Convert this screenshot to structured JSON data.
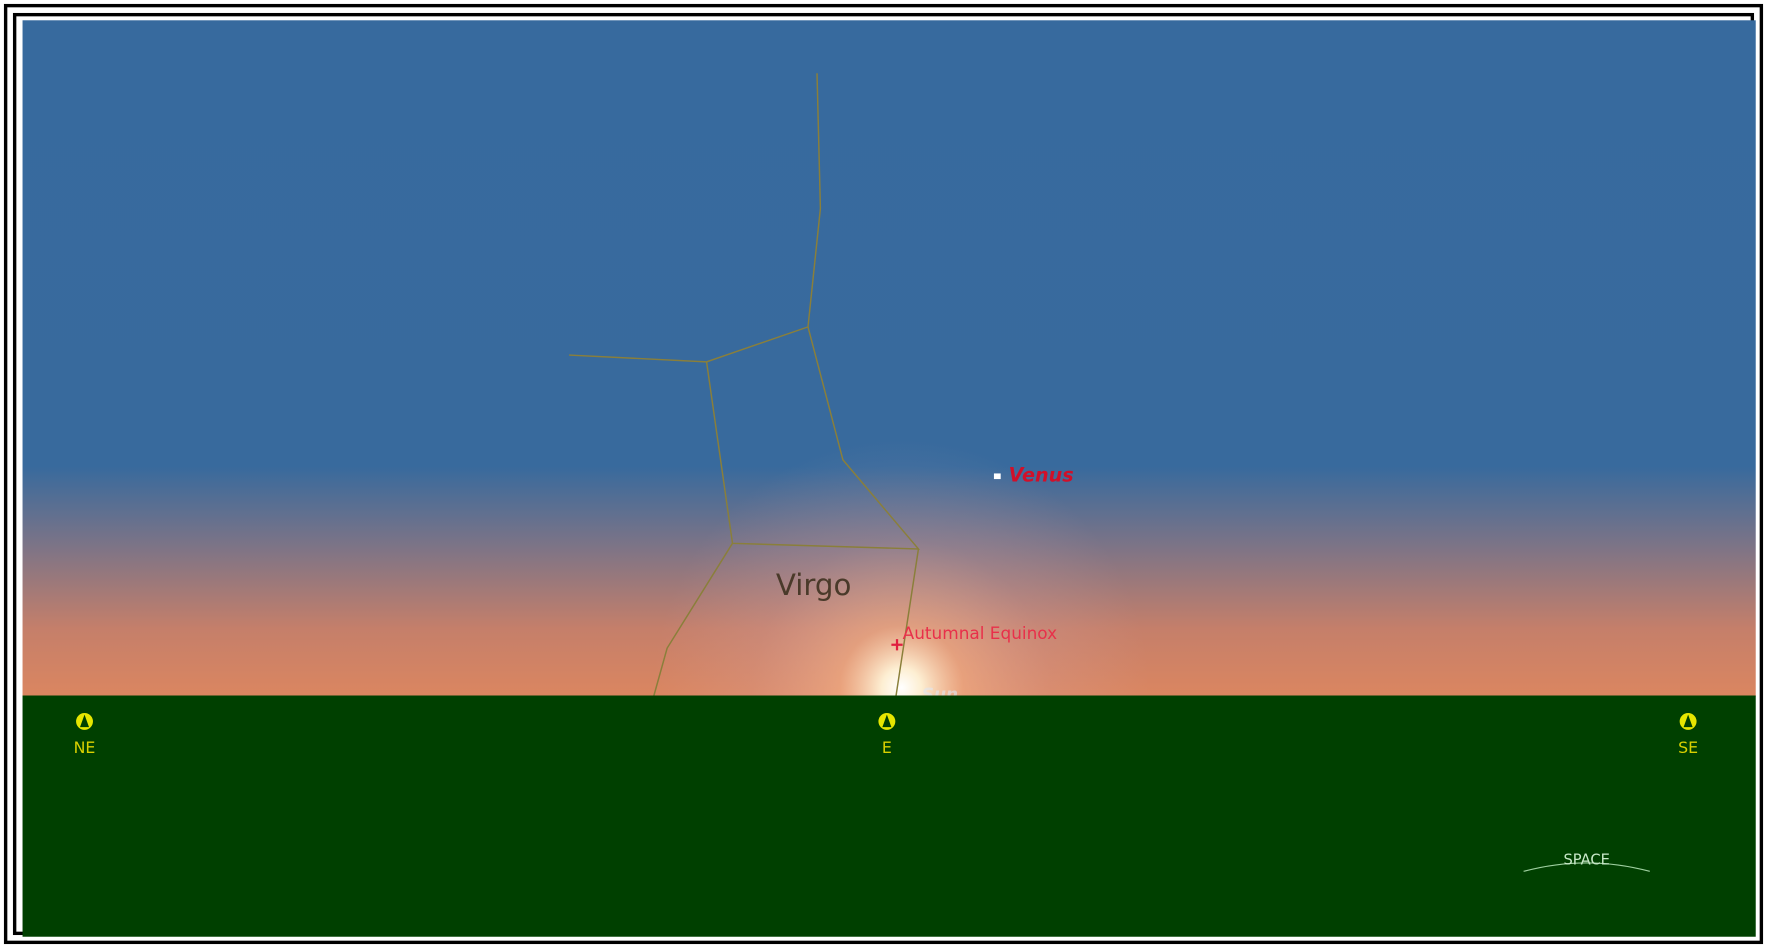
{
  "sky": {
    "constellation": "Virgo",
    "planet": "Venus",
    "marker": "Autumnal Equinox",
    "star": "Sun"
  },
  "compass": [
    {
      "label": "NE"
    },
    {
      "label": "E"
    },
    {
      "label": "SE"
    }
  ],
  "mode_button": "SPACE"
}
